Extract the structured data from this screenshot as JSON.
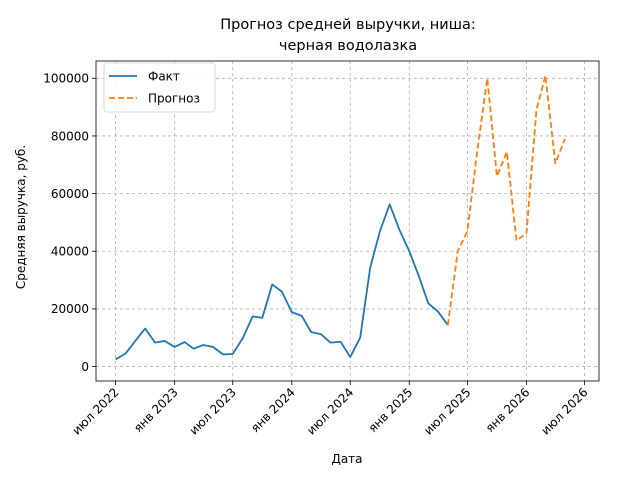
{
  "chart_data": {
    "type": "line",
    "title_lines": [
      "Прогноз средней выручки, ниша:",
      "черная водолазка"
    ],
    "xlabel": "Дата",
    "ylabel": "Средняя выручка, руб.",
    "xlim": [
      "2022-05-01",
      "2026-08-15"
    ],
    "ylim": [
      -5000,
      106000
    ],
    "yticks": [
      0,
      20000,
      40000,
      60000,
      80000,
      100000
    ],
    "ytick_labels": [
      "0",
      "20000",
      "40000",
      "60000",
      "80000",
      "100000"
    ],
    "xticks": [
      "2022-07-01",
      "2023-01-01",
      "2023-07-01",
      "2024-01-01",
      "2024-07-01",
      "2025-01-01",
      "2025-07-01",
      "2026-01-01",
      "2026-07-01"
    ],
    "xtick_labels": [
      "июл 2022",
      "янв 2023",
      "июл 2023",
      "янв 2024",
      "июл 2024",
      "янв 2025",
      "июл 2025",
      "янв 2026",
      "июл 2026"
    ],
    "grid": true,
    "legend_position": "top-left",
    "series": [
      {
        "name": "Факт",
        "color": "#1f77b4",
        "style": "solid",
        "points": [
          [
            "2022-07-01",
            2500
          ],
          [
            "2022-08-01",
            4500
          ],
          [
            "2022-09-01",
            9000
          ],
          [
            "2022-10-01",
            13200
          ],
          [
            "2022-11-01",
            8300
          ],
          [
            "2022-12-01",
            8900
          ],
          [
            "2023-01-01",
            6800
          ],
          [
            "2023-02-01",
            8500
          ],
          [
            "2023-03-01",
            6200
          ],
          [
            "2023-04-01",
            7500
          ],
          [
            "2023-05-01",
            6800
          ],
          [
            "2023-06-01",
            4200
          ],
          [
            "2023-07-01",
            4400
          ],
          [
            "2023-08-01",
            9800
          ],
          [
            "2023-09-01",
            17400
          ],
          [
            "2023-10-01",
            16900
          ],
          [
            "2023-11-01",
            28500
          ],
          [
            "2023-12-01",
            26000
          ],
          [
            "2024-01-01",
            18900
          ],
          [
            "2024-02-01",
            17600
          ],
          [
            "2024-03-01",
            12000
          ],
          [
            "2024-04-01",
            11200
          ],
          [
            "2024-05-01",
            8300
          ],
          [
            "2024-06-01",
            8600
          ],
          [
            "2024-07-01",
            3300
          ],
          [
            "2024-08-01",
            10000
          ],
          [
            "2024-09-01",
            34200
          ],
          [
            "2024-10-01",
            46800
          ],
          [
            "2024-11-01",
            56300
          ],
          [
            "2024-12-01",
            47500
          ],
          [
            "2025-01-01",
            40000
          ],
          [
            "2025-02-01",
            31000
          ],
          [
            "2025-03-01",
            22000
          ],
          [
            "2025-04-01",
            19000
          ],
          [
            "2025-05-01",
            14400
          ]
        ]
      },
      {
        "name": "Прогноз",
        "color": "#ff7f0e",
        "style": "dashed",
        "points": [
          [
            "2025-05-01",
            14400
          ],
          [
            "2025-06-01",
            40000
          ],
          [
            "2025-07-01",
            47000
          ],
          [
            "2025-08-01",
            75000
          ],
          [
            "2025-09-01",
            100000
          ],
          [
            "2025-10-01",
            66000
          ],
          [
            "2025-11-01",
            74500
          ],
          [
            "2025-12-01",
            43700
          ],
          [
            "2026-01-01",
            46200
          ],
          [
            "2026-02-01",
            88900
          ],
          [
            "2026-03-01",
            101000
          ],
          [
            "2026-04-01",
            70500
          ],
          [
            "2026-05-01",
            79000
          ]
        ]
      }
    ]
  }
}
